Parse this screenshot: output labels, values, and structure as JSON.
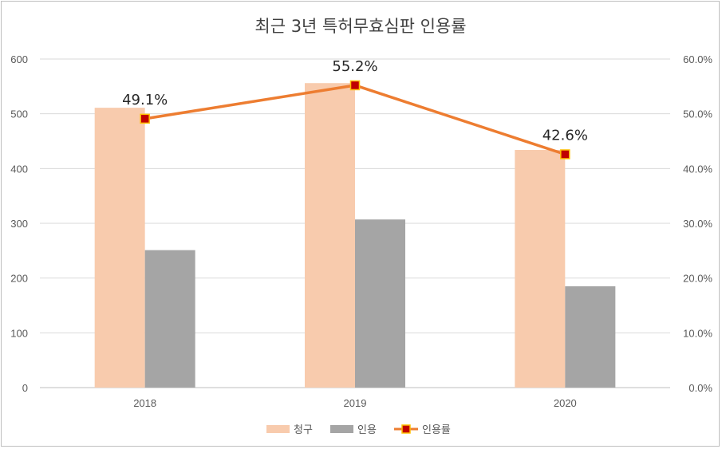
{
  "chart_data": {
    "type": "bar",
    "title": "최근 3년 특허무효심판 인용률",
    "categories": [
      "2018",
      "2019",
      "2020"
    ],
    "series": [
      {
        "name": "청구",
        "kind": "bar",
        "axis": "left",
        "color": "#f8cbad",
        "values": [
          511,
          556,
          434
        ]
      },
      {
        "name": "인용",
        "kind": "bar",
        "axis": "left",
        "color": "#a5a5a5",
        "values": [
          251,
          307,
          185
        ]
      },
      {
        "name": "인용률",
        "kind": "line",
        "axis": "right",
        "color": "#ed7d31",
        "marker_fill": "#c00000",
        "marker_border": "#ffc000",
        "values": [
          0.491,
          0.552,
          0.426
        ],
        "labels": [
          "49.1%",
          "55.2%",
          "42.6%"
        ]
      }
    ],
    "y_left": {
      "min": 0,
      "max": 600,
      "ticks": [
        "0",
        "100",
        "200",
        "300",
        "400",
        "500",
        "600"
      ]
    },
    "y_right": {
      "min": 0,
      "max": 0.6,
      "ticks": [
        "0.0%",
        "10.0%",
        "20.0%",
        "30.0%",
        "40.0%",
        "50.0%",
        "60.0%"
      ]
    },
    "grid": true,
    "legend_position": "bottom"
  }
}
